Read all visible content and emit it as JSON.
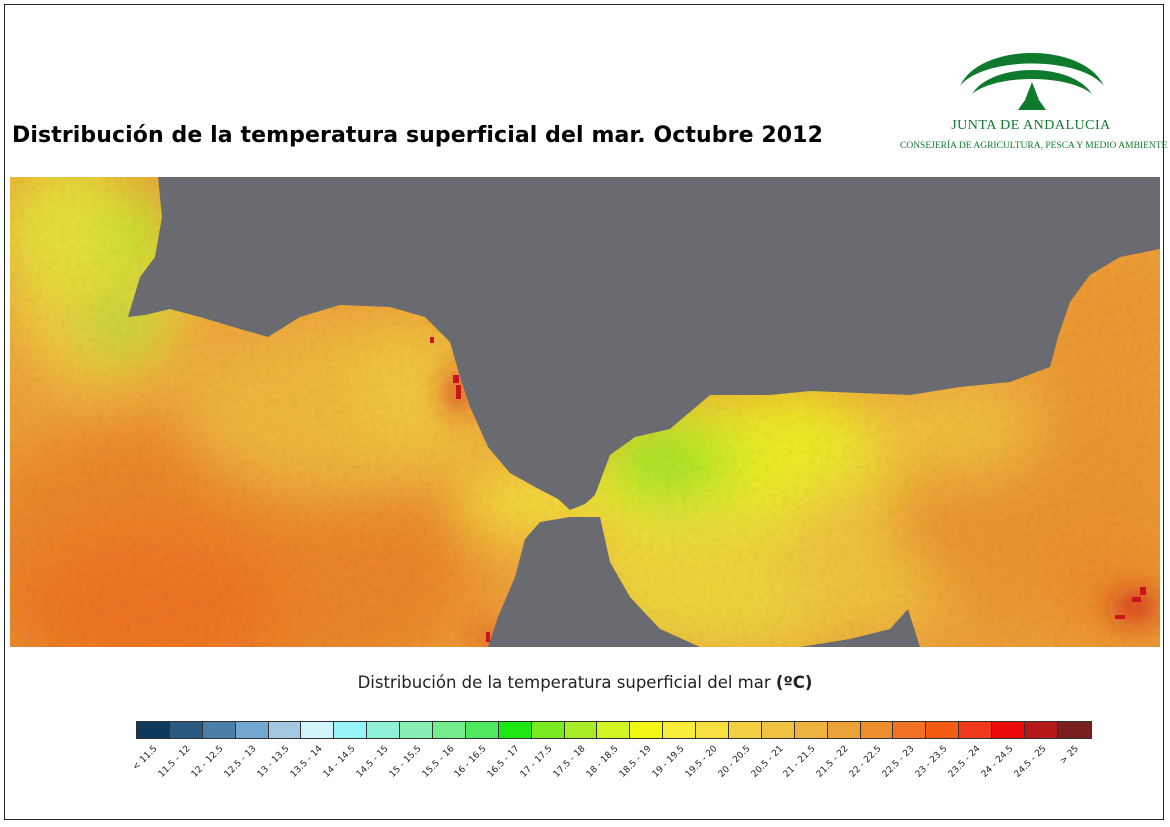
{
  "title": "Distribución de la temperatura superficial del mar. Octubre 2012",
  "logo": {
    "name": "JUNTA DE ANDALUCIA",
    "subtitle": "CONSEJERÍA DE AGRICULTURA, PESCA Y MEDIO AMBIENTE",
    "colors": {
      "green": "#0e7a2c"
    }
  },
  "map": {
    "land_color": "#6a6b70",
    "coast_hot_color": "#c8141c"
  },
  "legend": {
    "title": "Distribución de la temperatura superficial del mar",
    "unit": "(ºC)",
    "classes": [
      {
        "label": "< 11.5",
        "color": "#0d3a5c"
      },
      {
        "label": "11.5 - 12",
        "color": "#2a5a80"
      },
      {
        "label": "12 - 12.5",
        "color": "#4c7fa8"
      },
      {
        "label": "12.5 - 13",
        "color": "#74a7d0"
      },
      {
        "label": "13 - 13.5",
        "color": "#a2c8e2"
      },
      {
        "label": "13.5 - 14",
        "color": "#d2f4fa"
      },
      {
        "label": "14 - 14.5",
        "color": "#9af4fb"
      },
      {
        "label": "14.5 - 15",
        "color": "#8ff2d8"
      },
      {
        "label": "15 - 15.5",
        "color": "#86f0b4"
      },
      {
        "label": "15.5 - 16",
        "color": "#74ec8c"
      },
      {
        "label": "16 - 16.5",
        "color": "#4ee860"
      },
      {
        "label": "16.5 - 17",
        "color": "#1ee814"
      },
      {
        "label": "17 - 17.5",
        "color": "#7aea20"
      },
      {
        "label": "17.5 - 18",
        "color": "#a8ee28"
      },
      {
        "label": "18 - 18.5",
        "color": "#d2f624"
      },
      {
        "label": "18.5 - 19",
        "color": "#f2f814"
      },
      {
        "label": "19 - 19.5",
        "color": "#f8ee3a"
      },
      {
        "label": "19.5 - 20",
        "color": "#f5e040"
      },
      {
        "label": "20 - 20.5",
        "color": "#f2d042"
      },
      {
        "label": "20.5 - 21",
        "color": "#f0c242"
      },
      {
        "label": "21 - 21.5",
        "color": "#eeb23e"
      },
      {
        "label": "21.5 - 22",
        "color": "#eca236"
      },
      {
        "label": "22 - 22.5",
        "color": "#ec8e2c"
      },
      {
        "label": "22.5 - 23",
        "color": "#ee7222"
      },
      {
        "label": "23 - 23.5",
        "color": "#f45c14"
      },
      {
        "label": "23.5 - 24",
        "color": "#f0381a"
      },
      {
        "label": "24 - 24.5",
        "color": "#ec0a0c"
      },
      {
        "label": "24.5 - 25",
        "color": "#b41818"
      },
      {
        "label": "> 25",
        "color": "#782020"
      }
    ]
  }
}
